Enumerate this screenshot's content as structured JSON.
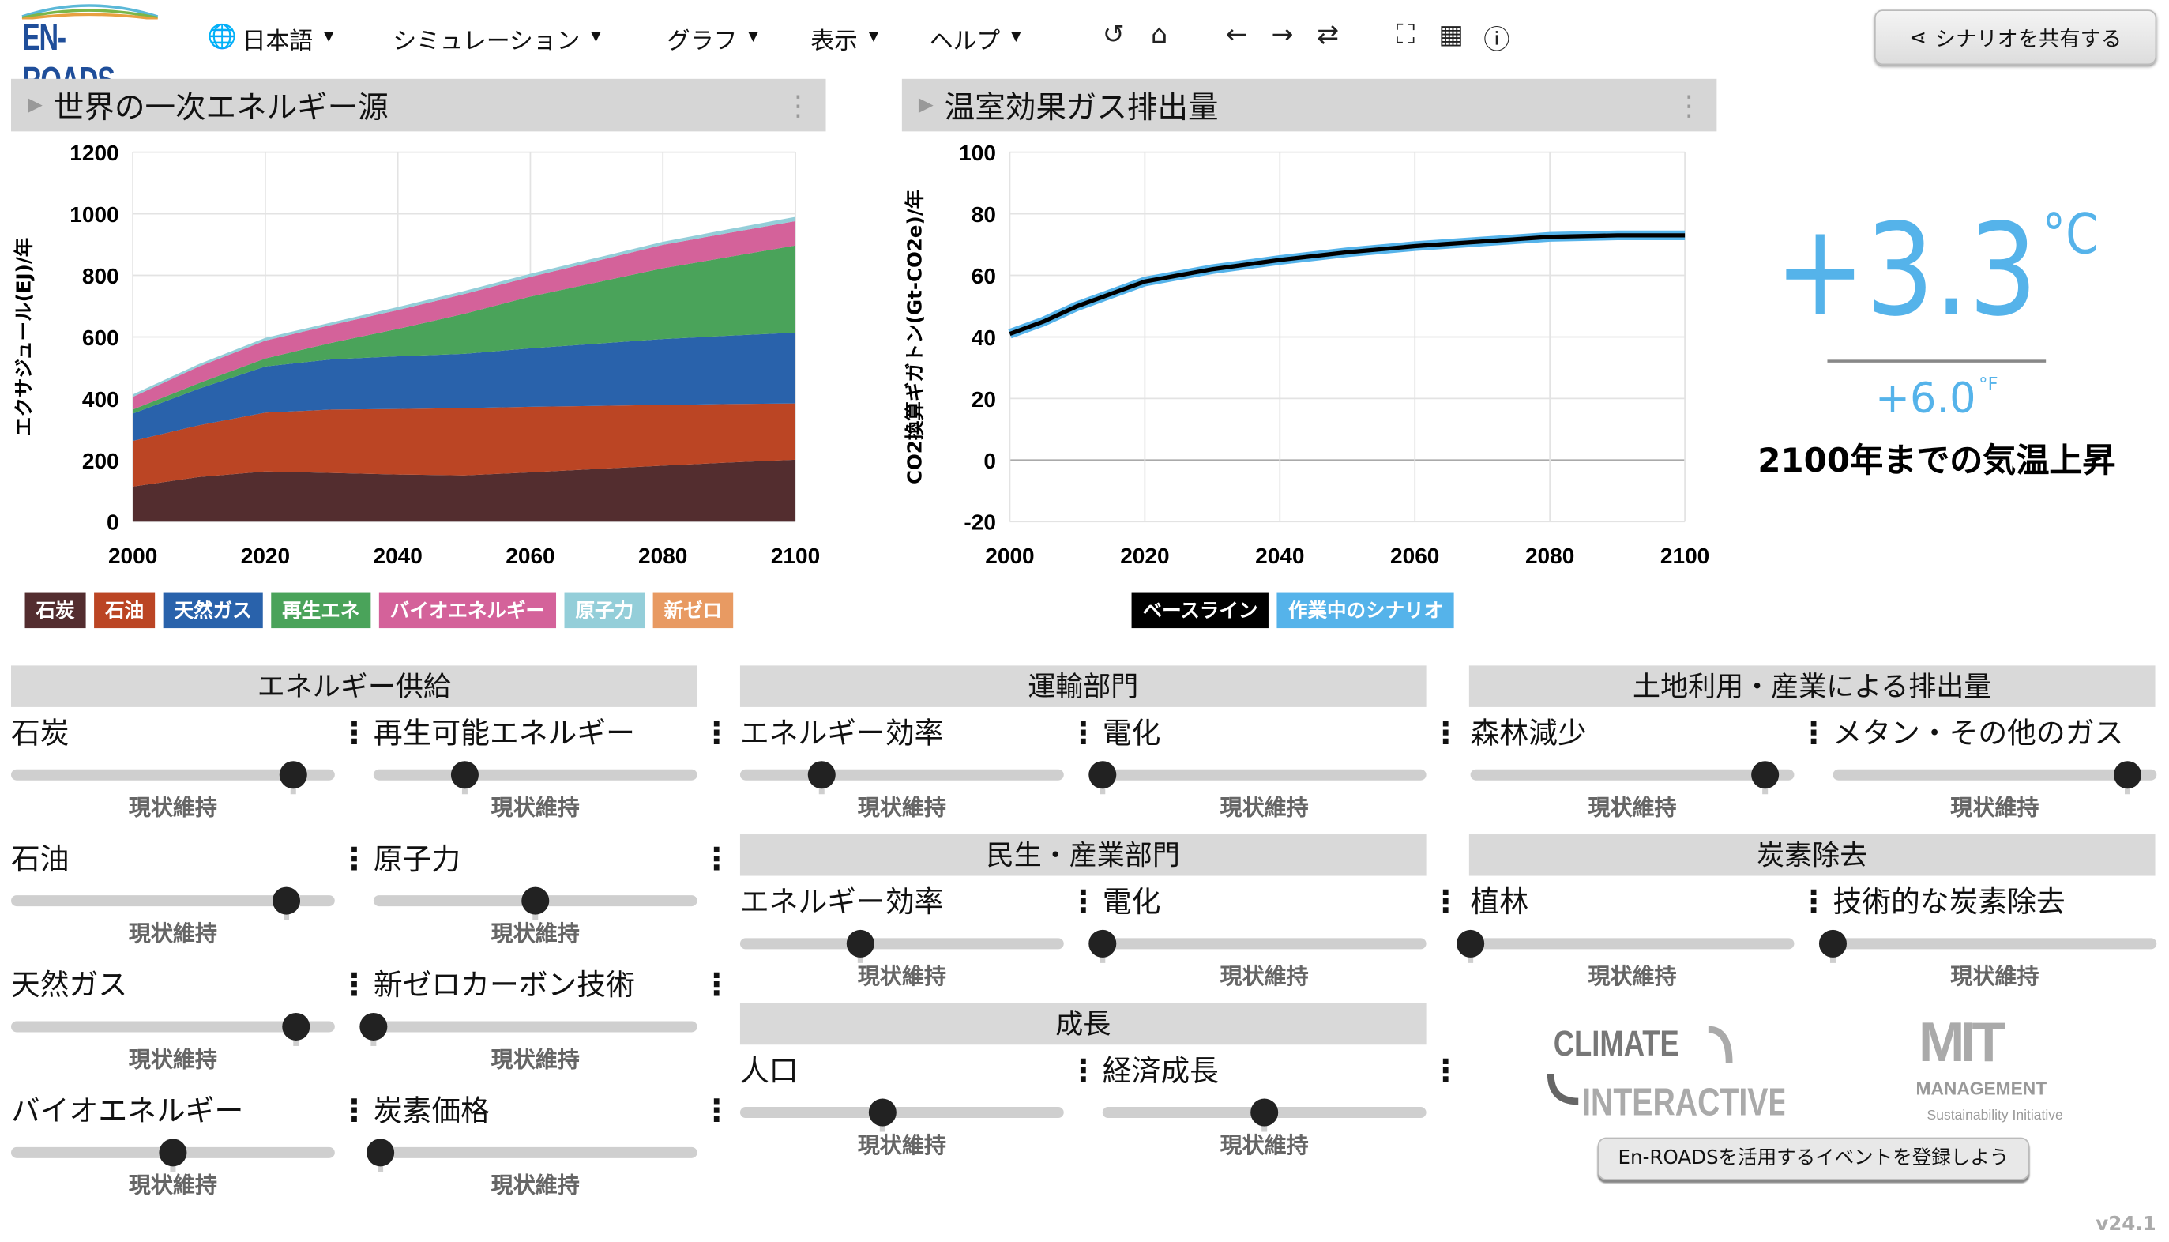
{
  "app": {
    "logo": "EN-ROADS",
    "version": "v24.1"
  },
  "menu": [
    {
      "label": "日本語",
      "icon": "globe-icon"
    },
    {
      "label": "シミュレーション"
    },
    {
      "label": "グラフ"
    },
    {
      "label": "表示"
    },
    {
      "label": "ヘルプ"
    }
  ],
  "toolbar": {
    "icons": [
      "undo-icon",
      "home-icon",
      "back-icon",
      "forward-icon",
      "redo-icon",
      "fullscreen-icon",
      "table-icon",
      "info-icon"
    ],
    "glyphs": [
      "↺",
      "⌂",
      "←",
      "→",
      "⇄",
      "⛶",
      "▦",
      "ⓘ"
    ]
  },
  "share": {
    "label": "シナリオを共有する",
    "icon": "share-icon"
  },
  "colors": {
    "accent": "#55b3ea",
    "coal": "#532d2f",
    "oil": "#bb4524",
    "gas": "#2962ab",
    "renew": "#4aa35a",
    "bio": "#d4629a",
    "nuclear": "#94ced9",
    "newzero": "#e89a62"
  },
  "chart_data": [
    {
      "type": "area",
      "title": "世界の一次エネルギー源",
      "ylabel": "エクサジュール(EJ)/年",
      "xlim": [
        2000,
        2100
      ],
      "ylim": [
        0,
        1200
      ],
      "xticks": [
        "2000",
        "2020",
        "2040",
        "2060",
        "2080",
        "2100"
      ],
      "yticks": [
        "0",
        "200",
        "400",
        "600",
        "800",
        "1000",
        "1200"
      ],
      "stacked": true,
      "grid": true,
      "legend": "bottom",
      "x": [
        2000,
        2010,
        2020,
        2030,
        2040,
        2050,
        2060,
        2070,
        2080,
        2090,
        2100
      ],
      "series": [
        {
          "name": "石炭",
          "color": "#532d2f",
          "values": [
            114,
            145,
            163,
            158,
            153,
            150,
            160,
            171,
            182,
            192,
            201
          ]
        },
        {
          "name": "石油",
          "color": "#bb4524",
          "values": [
            148,
            168,
            191,
            206,
            213,
            219,
            213,
            205,
            197,
            190,
            183
          ]
        },
        {
          "name": "天然ガス",
          "color": "#2962ab",
          "values": [
            89,
            119,
            150,
            163,
            171,
            176,
            190,
            202,
            214,
            222,
            230
          ]
        },
        {
          "name": "再生エネ",
          "color": "#4aa35a",
          "values": [
            13,
            18,
            26,
            54,
            89,
            130,
            168,
            199,
            230,
            256,
            283
          ]
        },
        {
          "name": "バイオエネルギー",
          "color": "#d4629a",
          "values": [
            41,
            54,
            58,
            58,
            61,
            64,
            64,
            70,
            76,
            78,
            79
          ]
        },
        {
          "name": "原子力",
          "color": "#94ced9",
          "values": [
            8,
            8,
            9,
            8,
            10,
            10,
            10,
            10,
            10,
            12,
            14
          ]
        },
        {
          "name": "新ゼロ",
          "color": "#e89a62",
          "values": [
            0,
            0,
            0,
            0,
            0,
            0,
            0,
            0,
            0,
            0,
            0
          ]
        }
      ]
    },
    {
      "type": "line",
      "title": "温室効果ガス排出量",
      "ylabel": "CO2換算ギガトン(Gt-CO2e)/年",
      "xlim": [
        2000,
        2100
      ],
      "ylim": [
        -20,
        100
      ],
      "xticks": [
        "2000",
        "2020",
        "2040",
        "2060",
        "2080",
        "2100"
      ],
      "yticks": [
        "-20",
        "0",
        "20",
        "40",
        "60",
        "80",
        "100"
      ],
      "grid": true,
      "legend": "bottom",
      "x": [
        2000,
        2005,
        2010,
        2015,
        2020,
        2025,
        2030,
        2040,
        2050,
        2060,
        2070,
        2080,
        2090,
        2100
      ],
      "series": [
        {
          "name": "作業中のシナリオ",
          "color": "#55b3ea",
          "values": [
            41,
            45,
            50,
            54,
            58,
            60,
            62,
            65,
            67.5,
            69.5,
            71,
            72.5,
            73,
            73
          ]
        },
        {
          "name": "ベースライン",
          "color": "#000000",
          "values": [
            41,
            45,
            50,
            54,
            58,
            60,
            62,
            65,
            67.5,
            69.5,
            71,
            72.5,
            73,
            73
          ]
        }
      ]
    }
  ],
  "temperature": {
    "celsius": "+3.3",
    "c_unit": "°C",
    "fahrenheit": "+6.0",
    "f_unit": "°F",
    "caption": "2100年までの気温上昇"
  },
  "sections": {
    "supply": "エネルギー供給",
    "transport": "運輸部門",
    "buildings": "民生・産業部門",
    "growth": "成長",
    "land": "土地利用・産業による排出量",
    "removal": "炭素除去"
  },
  "status_quo": "現状維持",
  "sliders": [
    {
      "label": "石炭",
      "value": 0.87,
      "default": 0.87
    },
    {
      "label": "再生可能エネルギー",
      "value": 0.28,
      "default": 0.28
    },
    {
      "label": "石油",
      "value": 0.85,
      "default": 0.85
    },
    {
      "label": "原子力",
      "value": 0.5,
      "default": 0.5
    },
    {
      "label": "天然ガス",
      "value": 0.88,
      "default": 0.88
    },
    {
      "label": "新ゼロカーボン技術",
      "value": 0.0,
      "default": 0.0
    },
    {
      "label": "バイオエネルギー",
      "value": 0.5,
      "default": 0.5
    },
    {
      "label": "炭素価格",
      "value": 0.02,
      "default": 0.02
    },
    {
      "label": "エネルギー効率",
      "value": 0.25,
      "default": 0.25
    },
    {
      "label": "電化",
      "value": 0.0,
      "default": 0.0
    },
    {
      "label": "エネルギー効率",
      "value": 0.37,
      "default": 0.37
    },
    {
      "label": "電化",
      "value": 0.0,
      "default": 0.0
    },
    {
      "label": "人口",
      "value": 0.44,
      "default": 0.44
    },
    {
      "label": "経済成長",
      "value": 0.5,
      "default": 0.5
    },
    {
      "label": "森林減少",
      "value": 0.91,
      "default": 0.91
    },
    {
      "label": "メタン・その他のガス",
      "value": 0.91,
      "default": 0.91
    },
    {
      "label": "植林",
      "value": 0.0,
      "default": 0.0
    },
    {
      "label": "技術的な炭素除去",
      "value": 0.0,
      "default": 0.0
    }
  ],
  "footer": {
    "climate_logo": "CLIMATE INTERACTIVE",
    "mit_logo": "MIT MANAGEMENT Sustainability Initiative",
    "event_button": "En-ROADSを活用するイベントを登録しよう"
  }
}
